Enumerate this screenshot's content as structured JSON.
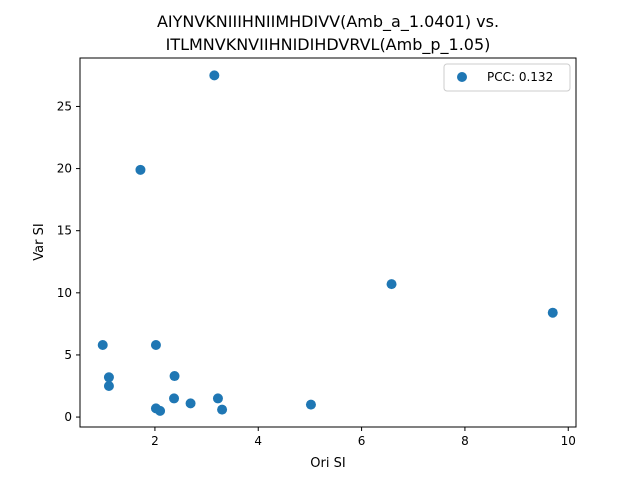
{
  "chart_data": {
    "type": "scatter",
    "title_line1": "AIYNVKNIIIHNIIMHDIVV(Amb_a_1.0401) vs.",
    "title_line2": "ITLMNVKNVIIHNIDIHDVRVL(Amb_p_1.05)",
    "xlabel": "Ori SI",
    "ylabel": "Var SI",
    "xlim": [
      0.55,
      10.15
    ],
    "ylim": [
      -0.8,
      28.9
    ],
    "xticks": [
      2,
      4,
      6,
      8,
      10
    ],
    "yticks": [
      0,
      5,
      10,
      15,
      20,
      25
    ],
    "grid": false,
    "legend_position": "top-right",
    "series": [
      {
        "name": "PCC: 0.132",
        "color": "#1f77b4",
        "points": [
          {
            "x": 3.15,
            "y": 27.5
          },
          {
            "x": 1.72,
            "y": 19.9
          },
          {
            "x": 6.58,
            "y": 10.7
          },
          {
            "x": 9.7,
            "y": 8.4
          },
          {
            "x": 0.99,
            "y": 5.8
          },
          {
            "x": 2.02,
            "y": 5.8
          },
          {
            "x": 1.11,
            "y": 3.2
          },
          {
            "x": 1.11,
            "y": 2.5
          },
          {
            "x": 2.38,
            "y": 3.3
          },
          {
            "x": 2.37,
            "y": 1.5
          },
          {
            "x": 3.22,
            "y": 1.5
          },
          {
            "x": 2.69,
            "y": 1.1
          },
          {
            "x": 2.02,
            "y": 0.7
          },
          {
            "x": 2.1,
            "y": 0.5
          },
          {
            "x": 3.3,
            "y": 0.6
          },
          {
            "x": 5.02,
            "y": 1.0
          }
        ]
      }
    ]
  }
}
